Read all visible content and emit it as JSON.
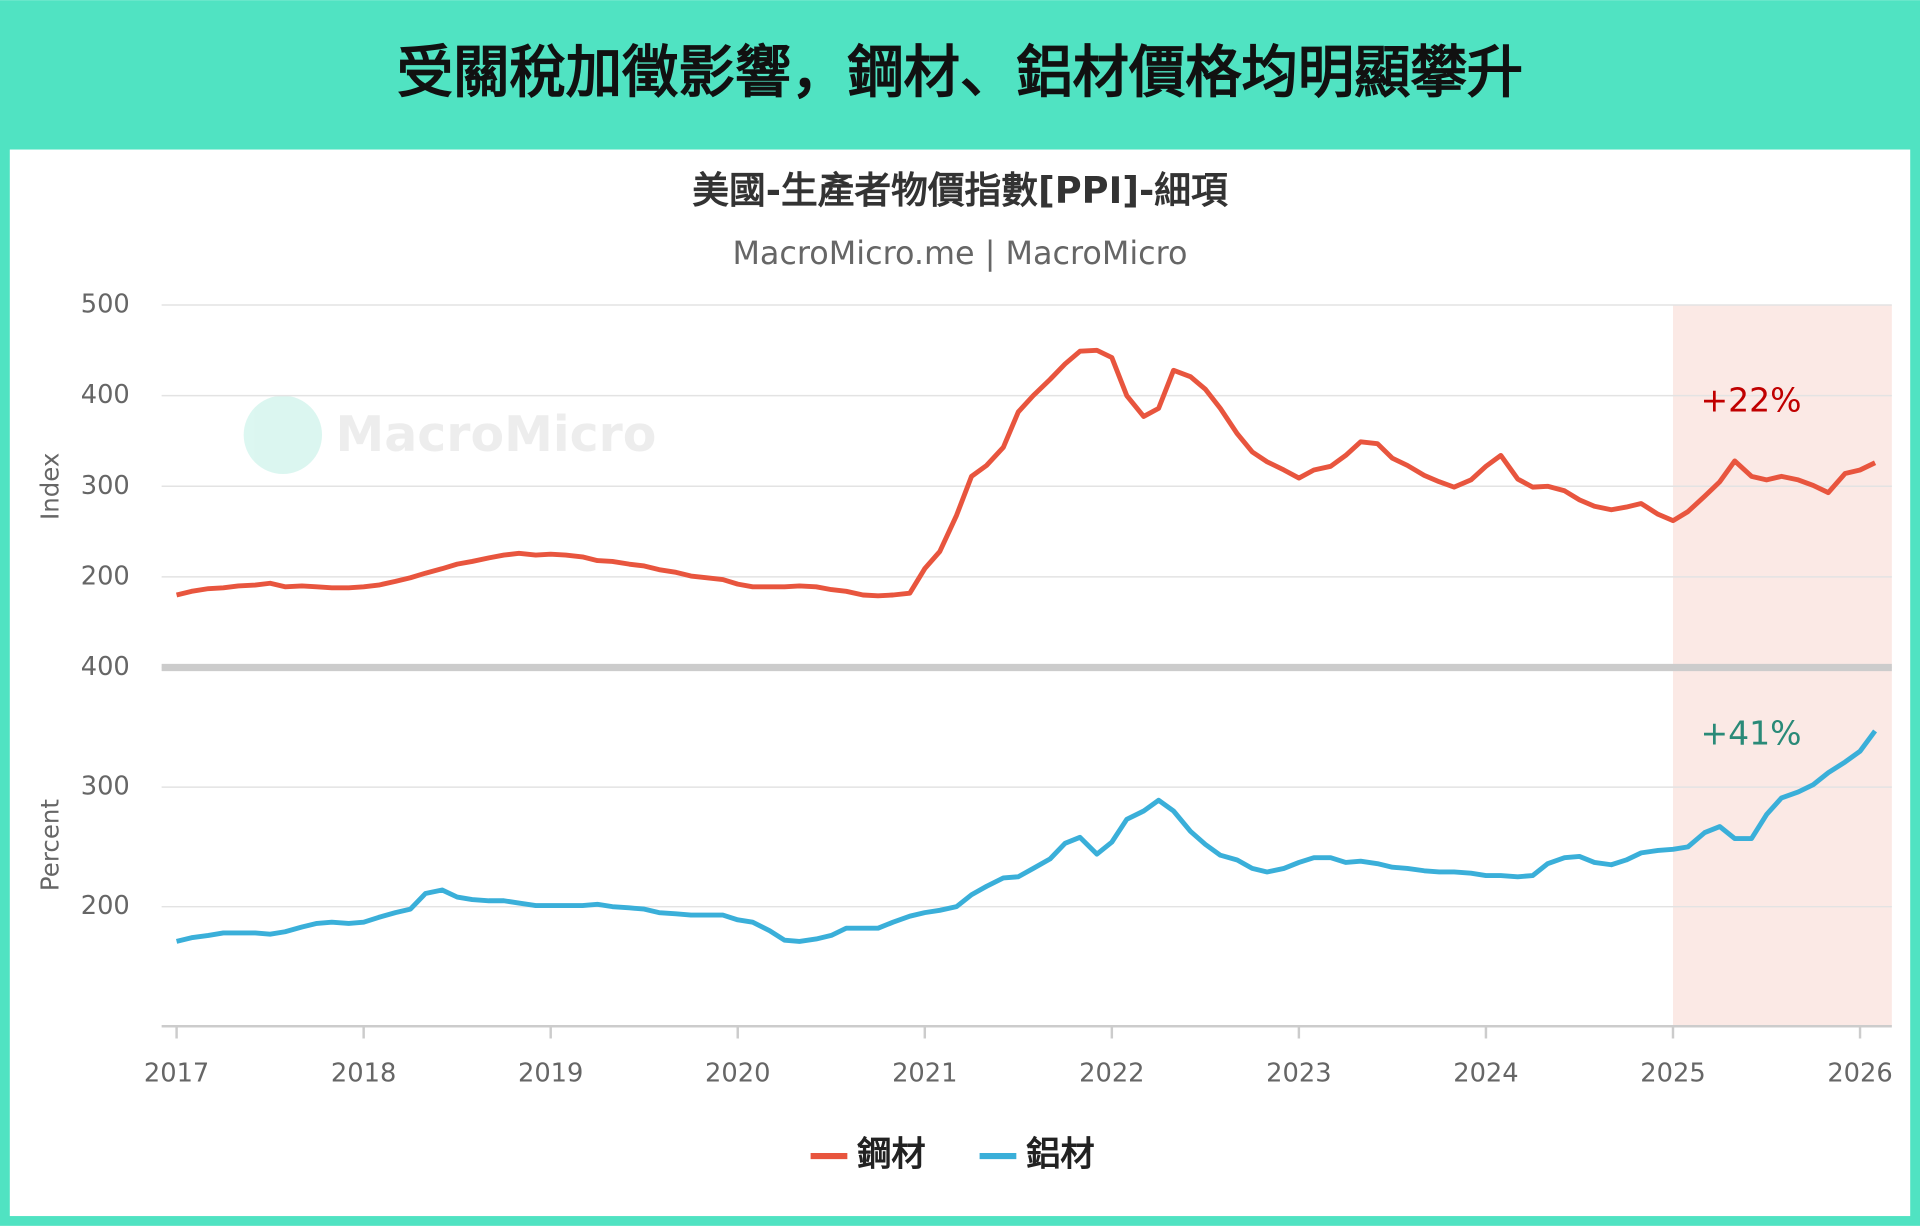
{
  "header": {
    "title": "受關稅加徵影響，鋼材、鋁材價格均明顯攀升"
  },
  "chart_data": {
    "type": "line",
    "title": "美國-生產者物價指數[PPI]-細項",
    "subtitle": "MacroMicro.me | MacroMicro",
    "watermark": "MacroMicro",
    "x": [
      2017.0,
      2017.08,
      2017.17,
      2017.25,
      2017.33,
      2017.42,
      2017.5,
      2017.58,
      2017.67,
      2017.75,
      2017.83,
      2017.92,
      2018.0,
      2018.08,
      2018.17,
      2018.25,
      2018.33,
      2018.42,
      2018.5,
      2018.58,
      2018.67,
      2018.75,
      2018.83,
      2018.92,
      2019.0,
      2019.08,
      2019.17,
      2019.25,
      2019.33,
      2019.42,
      2019.5,
      2019.58,
      2019.67,
      2019.75,
      2019.83,
      2019.92,
      2020.0,
      2020.08,
      2020.17,
      2020.25,
      2020.33,
      2020.42,
      2020.5,
      2020.58,
      2020.67,
      2020.75,
      2020.83,
      2020.92,
      2021.0,
      2021.08,
      2021.17,
      2021.25,
      2021.33,
      2021.42,
      2021.5,
      2021.58,
      2021.67,
      2021.75,
      2021.83,
      2021.92,
      2022.0,
      2022.08,
      2022.17,
      2022.25,
      2022.33,
      2022.42,
      2022.5,
      2022.58,
      2022.67,
      2022.75,
      2022.83,
      2022.92,
      2023.0,
      2023.08,
      2023.17,
      2023.25,
      2023.33,
      2023.42,
      2023.5,
      2023.58,
      2023.67,
      2023.75,
      2023.83,
      2023.92,
      2024.0,
      2024.08,
      2024.17,
      2024.25,
      2024.33,
      2024.42,
      2024.5,
      2024.58,
      2024.67,
      2024.75,
      2024.83,
      2024.92,
      2025.0,
      2025.08,
      2025.17,
      2025.25,
      2025.33,
      2025.42,
      2025.5,
      2025.58,
      2025.67,
      2025.75,
      2025.83,
      2025.92,
      2026.0,
      2026.08
    ],
    "xlim": [
      2016.92,
      2026.17
    ],
    "xticks": [
      2017,
      2018,
      2019,
      2020,
      2021,
      2022,
      2023,
      2024,
      2025,
      2026
    ],
    "ylim": [
      100,
      500
    ],
    "yticks": [
      200,
      300,
      400,
      500
    ],
    "ylabel": "Index",
    "y2lim": [
      100,
      400
    ],
    "y2ticks": [
      200,
      300,
      400
    ],
    "y2label": "Percent",
    "shaded_from": 2025,
    "grid": true,
    "series": [
      {
        "name": "鋼材",
        "color": "#e8553e",
        "values": [
          180,
          184,
          187,
          188,
          190,
          191,
          193,
          189,
          190,
          189,
          188,
          188,
          189,
          191,
          195,
          199,
          204,
          209,
          214,
          217,
          221,
          224,
          226,
          224,
          225,
          224,
          222,
          218,
          217,
          214,
          212,
          208,
          205,
          201,
          199,
          197,
          192,
          189,
          189,
          189,
          190,
          189,
          186,
          184,
          180,
          179,
          180,
          182,
          209,
          228,
          268,
          311,
          323,
          343,
          382,
          400,
          418,
          435,
          449,
          450,
          442,
          400,
          377,
          386,
          428,
          421,
          407,
          386,
          358,
          338,
          327,
          318,
          309,
          318,
          322,
          334,
          349,
          347,
          331,
          323,
          312,
          305,
          299,
          307,
          322,
          334,
          308,
          299,
          300,
          295,
          285,
          278,
          274,
          277,
          281,
          269,
          262,
          272,
          289,
          305,
          328,
          311,
          307,
          311,
          307,
          301,
          293,
          314,
          318,
          326
        ]
      },
      {
        "name": "鋁材",
        "color": "#3aafd9",
        "axis": "y2",
        "values": [
          171,
          174,
          176,
          178,
          178,
          178,
          177,
          179,
          183,
          186,
          187,
          186,
          187,
          191,
          195,
          198,
          211,
          214,
          208,
          206,
          205,
          205,
          203,
          201,
          201,
          201,
          201,
          202,
          200,
          199,
          198,
          195,
          194,
          193,
          193,
          193,
          189,
          187,
          180,
          172,
          171,
          173,
          176,
          182,
          182,
          182,
          187,
          192,
          195,
          197,
          200,
          210,
          217,
          224,
          225,
          232,
          240,
          253,
          258,
          244,
          254,
          273,
          280,
          289,
          280,
          263,
          252,
          243,
          239,
          232,
          229,
          232,
          237,
          241,
          241,
          237,
          238,
          236,
          233,
          232,
          230,
          229,
          229,
          228,
          226,
          226,
          225,
          226,
          236,
          241,
          242,
          237,
          235,
          239,
          245,
          247,
          248,
          250,
          262,
          267,
          257,
          257,
          277,
          291,
          296,
          302,
          312,
          321,
          330,
          347
        ]
      }
    ],
    "annotations": [
      {
        "text": "+22%",
        "color": "#c00000"
      },
      {
        "text": "+41%",
        "color": "#2a8a78"
      }
    ]
  }
}
